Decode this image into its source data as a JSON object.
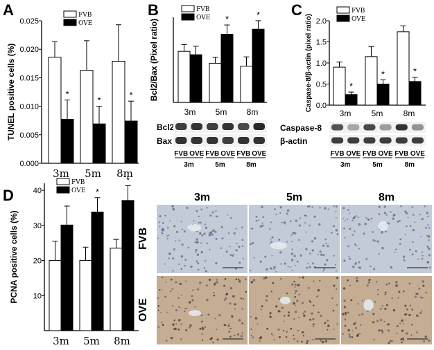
{
  "colors": {
    "fvb": "#ffffff",
    "ove": "#000000",
    "liver_fvb": "#c3cbd8",
    "liver_ove": "#c4ad93",
    "blot_bg": "#f2f2f2",
    "band": "#1e1e1e"
  },
  "panels": {
    "A": "A",
    "B": "B",
    "C": "C",
    "D": "D"
  },
  "chart_data": [
    {
      "id": "A",
      "type": "bar",
      "ylabel": "TUNEL positive cells (%)",
      "categories": [
        "3m",
        "5m",
        "8m"
      ],
      "ylim": [
        0,
        0.025
      ],
      "yticks": [
        "0.000",
        "0.005",
        "0.010",
        "0.015",
        "0.020",
        "0.025"
      ],
      "series": [
        {
          "name": "FVB",
          "values": [
            0.0186,
            0.0163,
            0.0179
          ],
          "errors": [
            0.0027,
            0.0052,
            0.0064
          ]
        },
        {
          "name": "OVE",
          "values": [
            0.0077,
            0.0069,
            0.0074
          ],
          "errors": [
            0.0034,
            0.0031,
            0.0035
          ]
        }
      ],
      "significance": [
        "*",
        "*",
        "*"
      ]
    },
    {
      "id": "B",
      "type": "bar",
      "ylabel": "Bcl2/Bax (Pixel ratio)",
      "categories": [
        "3m",
        "5m",
        "8m"
      ],
      "ylim": [
        0,
        2.0
      ],
      "yticks": [],
      "series": [
        {
          "name": "FVB",
          "values": [
            1.2,
            0.92,
            0.85
          ],
          "errors": [
            0.16,
            0.14,
            0.22
          ]
        },
        {
          "name": "OVE",
          "values": [
            1.12,
            1.6,
            1.72
          ],
          "errors": [
            0.2,
            0.22,
            0.2
          ]
        }
      ],
      "significance": [
        "",
        "*",
        "*"
      ]
    },
    {
      "id": "C",
      "type": "bar",
      "ylabel": "Caspase-8/β-actin (pixel ratio)",
      "categories": [
        "3m",
        "5m",
        "8m"
      ],
      "ylim": [
        0,
        2.0
      ],
      "yticks": [
        "0.0",
        "0.5",
        "1.0",
        "1.5",
        "2.0"
      ],
      "series": [
        {
          "name": "FVB",
          "values": [
            0.9,
            1.15,
            1.74
          ],
          "errors": [
            0.12,
            0.24,
            0.14
          ]
        },
        {
          "name": "OVE",
          "values": [
            0.25,
            0.5,
            0.56
          ],
          "errors": [
            0.06,
            0.1,
            0.1
          ]
        }
      ],
      "significance": [
        "*",
        "*",
        "*"
      ]
    },
    {
      "id": "D",
      "type": "bar",
      "ylabel": "PCNA positive cells (%)",
      "categories": [
        "3m",
        "5m",
        "8m"
      ],
      "ylim": [
        0,
        42
      ],
      "yticks": [
        "10",
        "20",
        "30",
        "40"
      ],
      "series": [
        {
          "name": "FVB",
          "values": [
            20.0,
            20.0,
            23.5
          ],
          "errors": [
            5.5,
            3.8,
            2.5
          ]
        },
        {
          "name": "OVE",
          "values": [
            30.1,
            33.8,
            37.1
          ],
          "errors": [
            5.4,
            4.1,
            4.2
          ]
        }
      ],
      "significance": [
        "",
        "*",
        "*"
      ]
    }
  ],
  "blot_B": {
    "rows": [
      "Bcl2",
      "Bax"
    ],
    "lanes": [
      "FVB",
      "OVE",
      "FVB",
      "OVE",
      "FVB",
      "OVE"
    ],
    "groups": [
      "3m",
      "5m",
      "8m"
    ]
  },
  "blot_C": {
    "rows": [
      "Caspase-8",
      "β-actin"
    ],
    "lanes": [
      "FVB",
      "OVE",
      "FVB",
      "OVE",
      "FVB",
      "OVE"
    ],
    "groups": [
      "3m",
      "5m",
      "8m"
    ]
  },
  "histology": {
    "columns": [
      "3m",
      "5m",
      "8m"
    ],
    "rows": [
      "FVB",
      "OVE"
    ]
  }
}
